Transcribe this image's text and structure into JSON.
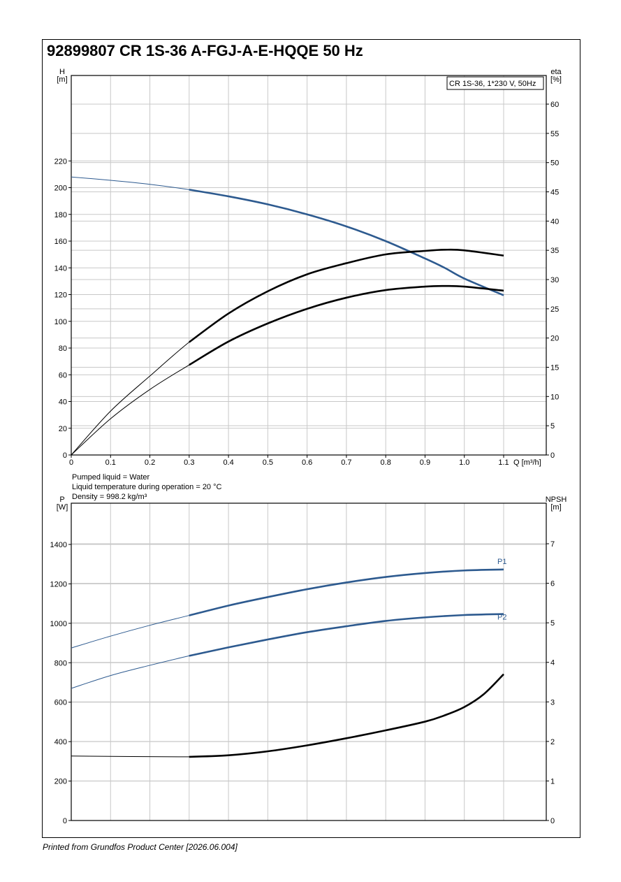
{
  "page": {
    "title": "92899807 CR 1S-36 A-FGJ-A-E-HQQE 50 Hz",
    "footer": "Printed from Grundfos Product Center [2026.06.004]",
    "liquid_info": [
      "Pumped liquid = Water",
      "Liquid temperature during operation = 20 °C",
      "Density = 998.2 kg/m³"
    ]
  },
  "colors": {
    "blue": "#2d5a8f",
    "black": "#000000",
    "grid": "#c8c8c8"
  },
  "chart_data": [
    {
      "type": "line",
      "legend_box": "CR 1S-36, 1*230 V, 50Hz",
      "xlabel": "Q [m³/h]",
      "xlim": [
        0,
        1.1
      ],
      "x_ticks": [
        "0",
        "0.1",
        "0.2",
        "0.3",
        "0.4",
        "0.5",
        "0.6",
        "0.7",
        "0.8",
        "0.9",
        "1.0",
        "1.1"
      ],
      "y_left": {
        "label_top": "H",
        "label_unit": "[m]",
        "ylim": [
          0,
          240
        ],
        "ticks": [
          "0",
          "20",
          "40",
          "60",
          "80",
          "100",
          "120",
          "140",
          "160",
          "180",
          "200",
          "220"
        ]
      },
      "y_right": {
        "label_top": "eta",
        "label_unit": "[%]",
        "ylim": [
          0,
          60
        ],
        "ticks": [
          "0",
          "5",
          "10",
          "15",
          "20",
          "25",
          "30",
          "35",
          "40",
          "45",
          "50",
          "55",
          "60"
        ]
      },
      "grid": true,
      "series": [
        {
          "axis": "left",
          "color": "blue",
          "x": [
            0,
            0.1,
            0.2,
            0.3,
            0.4,
            0.5,
            0.6,
            0.7,
            0.8,
            0.9,
            0.95,
            1.0,
            1.1
          ],
          "y": [
            208,
            205.5,
            202.5,
            198.5,
            193.5,
            187.5,
            180,
            171,
            160,
            147,
            140,
            132,
            119.5
          ]
        },
        {
          "axis": "right",
          "color": "black",
          "x": [
            0,
            0.1,
            0.2,
            0.3,
            0.4,
            0.5,
            0.6,
            0.7,
            0.8,
            0.9,
            0.95,
            1.0,
            1.1
          ],
          "y": [
            0,
            7.5,
            13.5,
            19.3,
            24.2,
            28,
            30.9,
            32.8,
            34.3,
            34.9,
            35.1,
            35,
            34.1
          ]
        },
        {
          "axis": "right",
          "color": "black",
          "x": [
            0,
            0.1,
            0.2,
            0.3,
            0.4,
            0.5,
            0.6,
            0.7,
            0.8,
            0.9,
            0.95,
            1.0,
            1.1
          ],
          "y": [
            0,
            6.2,
            11.2,
            15.4,
            19.4,
            22.5,
            25,
            26.9,
            28.2,
            28.8,
            28.9,
            28.8,
            28.1
          ]
        }
      ]
    },
    {
      "type": "line",
      "xlim": [
        0,
        1.1
      ],
      "y_left": {
        "label_top": "P",
        "label_unit": "[W]",
        "ylim": [
          0,
          1400
        ],
        "ticks": [
          "0",
          "200",
          "400",
          "600",
          "800",
          "1000",
          "1200",
          "1400"
        ]
      },
      "y_right": {
        "label_top": "NPSH",
        "label_unit": "[m]",
        "ylim": [
          0,
          7
        ],
        "ticks": [
          "0",
          "1",
          "2",
          "3",
          "4",
          "5",
          "6",
          "7"
        ]
      },
      "grid": true,
      "series": [
        {
          "name": "P1",
          "axis": "left",
          "color": "blue",
          "x": [
            0,
            0.1,
            0.2,
            0.3,
            0.4,
            0.5,
            0.6,
            0.7,
            0.8,
            0.9,
            1.0,
            1.1
          ],
          "y": [
            875,
            935,
            990,
            1040,
            1090,
            1133,
            1173,
            1207,
            1235,
            1255,
            1268,
            1273
          ]
        },
        {
          "name": "P2",
          "axis": "left",
          "color": "blue",
          "x": [
            0,
            0.1,
            0.2,
            0.3,
            0.4,
            0.5,
            0.6,
            0.7,
            0.8,
            0.9,
            1.0,
            1.1
          ],
          "y": [
            670,
            735,
            787,
            835,
            878,
            918,
            955,
            985,
            1012,
            1030,
            1042,
            1047
          ]
        },
        {
          "axis": "right",
          "color": "black",
          "x": [
            0,
            0.3,
            0.4,
            0.5,
            0.6,
            0.7,
            0.8,
            0.9,
            0.95,
            1.0,
            1.05,
            1.1
          ],
          "y": [
            1.63,
            1.61,
            1.65,
            1.75,
            1.9,
            2.08,
            2.28,
            2.5,
            2.66,
            2.87,
            3.2,
            3.7
          ]
        }
      ]
    }
  ]
}
